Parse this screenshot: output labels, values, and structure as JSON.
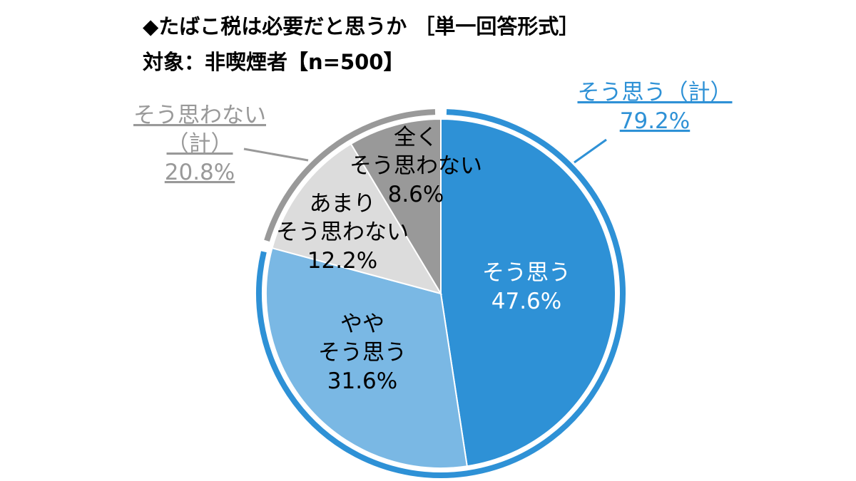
{
  "title": "◆たばこ税は必要だと思うか ［単一回答形式］",
  "subtitle": "対象：非喫煙者【n=500】",
  "chart_data": {
    "type": "pie",
    "slices": [
      {
        "name": "そう思う",
        "value": 47.6,
        "label_lines": [
          "そう思う",
          "47.6%"
        ],
        "color": "#2e91d6",
        "text_color": "#ffffff"
      },
      {
        "name": "ややそう思う",
        "value": 31.6,
        "label_lines": [
          "やや",
          "そう思う",
          "31.6%"
        ],
        "color": "#7ab8e4",
        "text_color": "#000000"
      },
      {
        "name": "あまりそう思わない",
        "value": 12.2,
        "label_lines": [
          "あまり",
          "そう思わない",
          "12.2%"
        ],
        "color": "#dcdcdc",
        "text_color": "#000000"
      },
      {
        "name": "全くそう思わない",
        "value": 8.6,
        "label_lines": [
          "全く",
          "そう思わない",
          "8.6%"
        ],
        "color": "#999999",
        "text_color": "#000000"
      }
    ],
    "groups": [
      {
        "name": "そう思う（計）",
        "value": 79.2,
        "label_lines": [
          "そう思う（計）",
          "79.2%"
        ],
        "color": "#2e91d6",
        "covers": [
          0,
          1
        ]
      },
      {
        "name": "そう思わない（計）",
        "value": 20.8,
        "label_lines": [
          "そう思わない",
          "（計）",
          "20.8%"
        ],
        "color": "#999999",
        "covers": [
          2,
          3
        ]
      }
    ]
  }
}
